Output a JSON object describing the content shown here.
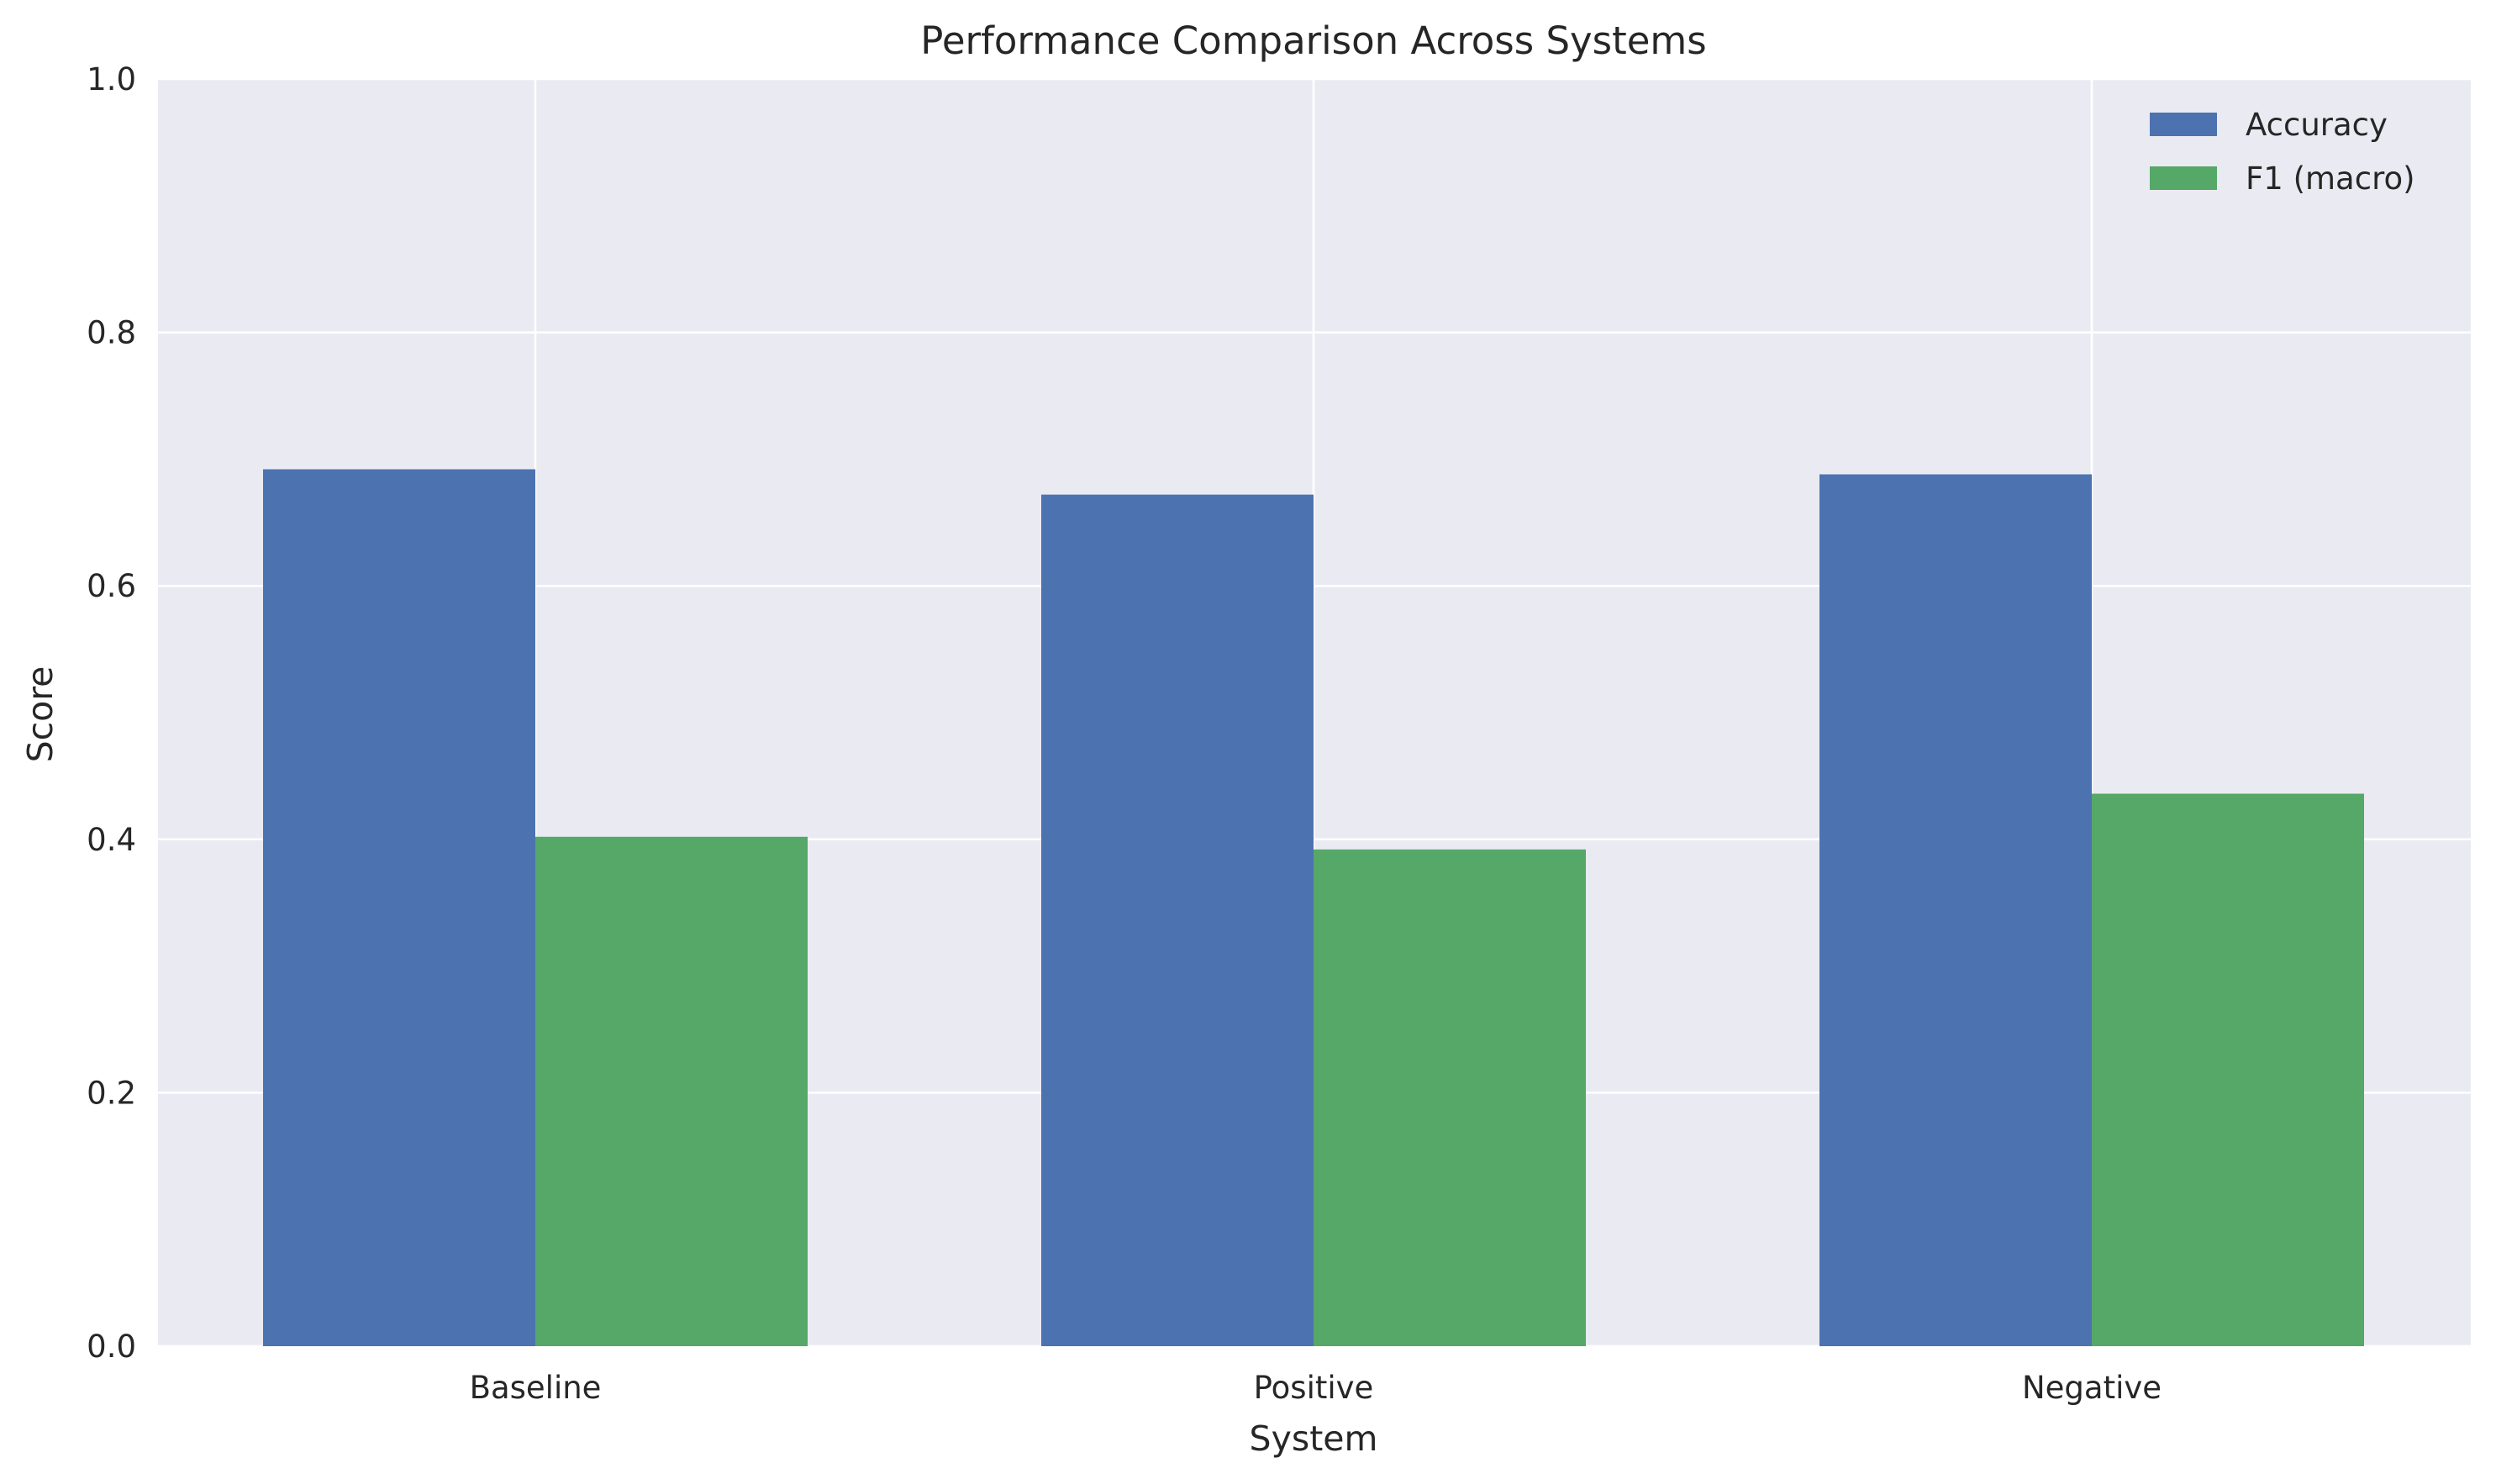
{
  "chart_data": {
    "type": "bar",
    "title": "Performance Comparison Across Systems",
    "xlabel": "System",
    "ylabel": "Score",
    "categories": [
      "Baseline",
      "Positive",
      "Negative"
    ],
    "series": [
      {
        "name": "Accuracy",
        "values": [
          0.692,
          0.672,
          0.688
        ],
        "color": "#4c72b0"
      },
      {
        "name": "F1 (macro)",
        "values": [
          0.402,
          0.392,
          0.436
        ],
        "color": "#55a868"
      }
    ],
    "ylim": [
      0,
      1.0
    ],
    "yticks": [
      0.0,
      0.2,
      0.4,
      0.6,
      0.8,
      1.0
    ],
    "ytick_labels": [
      "0.0",
      "0.2",
      "0.4",
      "0.6",
      "0.8",
      "1.0"
    ],
    "grid": true,
    "legend_position": "top-right",
    "background_color": "#eaeaf2",
    "grid_color": "#ffffff"
  }
}
